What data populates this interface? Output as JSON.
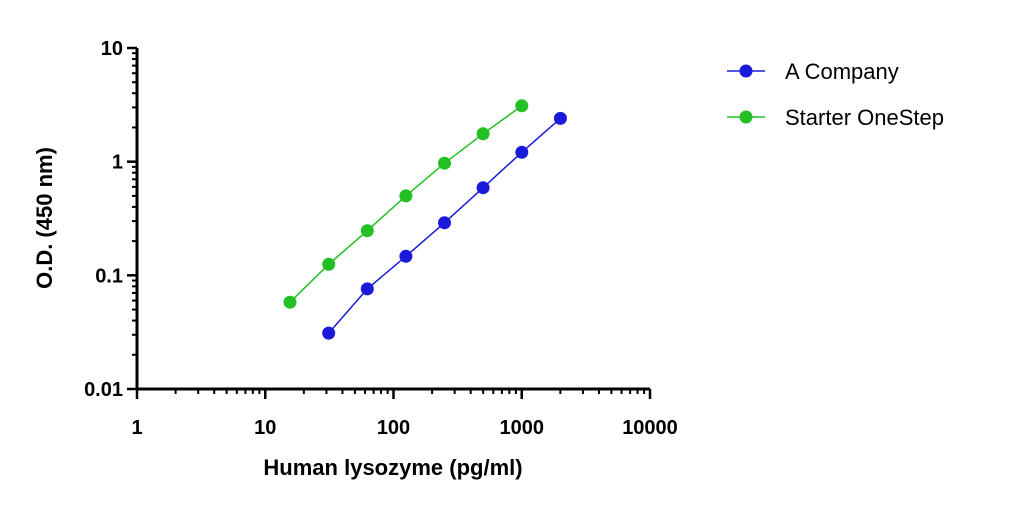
{
  "chart_data": {
    "type": "line",
    "xscale": "log",
    "yscale": "log",
    "xlabel": "Human lysozyme (pg/ml)",
    "ylabel": "O.D. (450 nm)",
    "xlim": [
      1,
      10000
    ],
    "ylim": [
      0.01,
      10
    ],
    "xticks": [
      {
        "value": 1,
        "label": "1"
      },
      {
        "value": 10,
        "label": "10"
      },
      {
        "value": 100,
        "label": "100"
      },
      {
        "value": 1000,
        "label": "1000"
      },
      {
        "value": 10000,
        "label": "10000"
      }
    ],
    "yticks": [
      {
        "value": 0.01,
        "label": "0.01"
      },
      {
        "value": 0.1,
        "label": "0.1"
      },
      {
        "value": 1,
        "label": "1"
      },
      {
        "value": 10,
        "label": "10"
      }
    ],
    "legend_position": "top-right",
    "grid": false,
    "series": [
      {
        "name": "A Company",
        "color": "#1a1adb",
        "x": [
          31.25,
          62.5,
          125,
          250,
          500,
          1000,
          2000
        ],
        "y": [
          0.031,
          0.076,
          0.147,
          0.29,
          0.59,
          1.21,
          2.4
        ]
      },
      {
        "name": "Starter OneStep",
        "color": "#22c022",
        "x": [
          15.6,
          31.25,
          62.5,
          125,
          250,
          500,
          1000
        ],
        "y": [
          0.058,
          0.125,
          0.247,
          0.5,
          0.97,
          1.76,
          3.1
        ]
      }
    ]
  }
}
